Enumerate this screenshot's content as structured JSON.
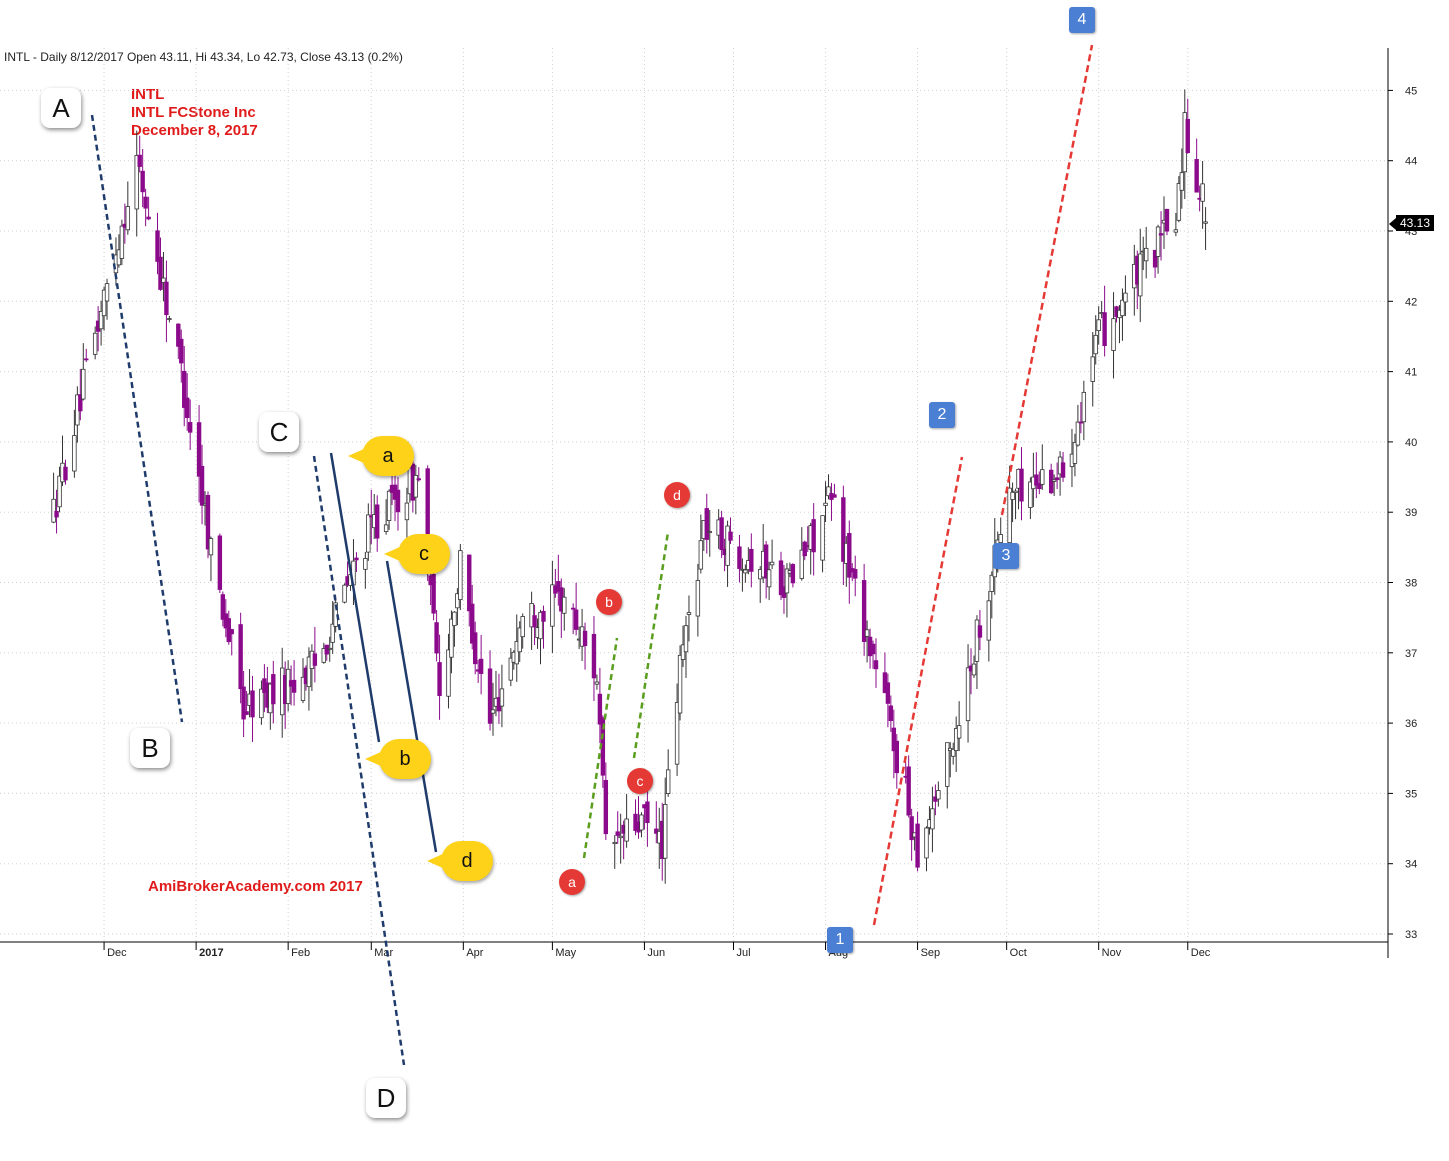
{
  "header": "INTL - Daily 8/12/2017 Open 43.11, Hi 43.34, Lo 42.73, Close 43.13 (0.2%)",
  "annotation": {
    "ticker": "INTL",
    "company": "INTL FCStone Inc",
    "date": "December 8, 2017"
  },
  "watermark": "AmiBrokerAcademy.com 2017",
  "last_price_label": "43.13",
  "wave_labels": {
    "big": [
      "A",
      "B",
      "C",
      "D"
    ],
    "yellow": [
      "a",
      "b",
      "c",
      "d"
    ],
    "red": [
      "a",
      "b",
      "c",
      "d"
    ],
    "blue": [
      "1",
      "2",
      "3",
      "4"
    ]
  },
  "colors": {
    "up_candle": "#ffffff",
    "down_candle": "#8b0a8b",
    "dash_navy": "#1f3b6b",
    "dash_green": "#5a9e1e",
    "dash_red": "#e53935",
    "grid": "#d0d0d0"
  },
  "chart_data": {
    "type": "candlestick",
    "title": "INTL - Daily",
    "ylim": [
      33,
      45
    ],
    "y_ticks": [
      "33",
      "34",
      "35",
      "36",
      "37",
      "38",
      "39",
      "40",
      "41",
      "42",
      "43",
      "44",
      "45"
    ],
    "x_ticks": [
      "Dec",
      "2017",
      "Feb",
      "Mar",
      "Apr",
      "May",
      "Jun",
      "Jul",
      "Aug",
      "Sep",
      "Oct",
      "Nov",
      "Dec"
    ],
    "grid": true,
    "price_path_anchors": [
      {
        "date": "2016-11-14",
        "close": 39.0
      },
      {
        "date": "2016-11-28",
        "close": 41.5
      },
      {
        "date": "2016-12-12",
        "close": 44.0
      },
      {
        "date": "2016-12-27",
        "close": 41.0
      },
      {
        "date": "2017-01-06",
        "close": 38.5
      },
      {
        "date": "2017-01-17",
        "close": 36.2
      },
      {
        "date": "2017-02-10",
        "close": 36.8
      },
      {
        "date": "2017-03-01",
        "close": 38.8
      },
      {
        "date": "2017-03-17",
        "close": 39.5
      },
      {
        "date": "2017-03-24",
        "close": 36.5
      },
      {
        "date": "2017-03-31",
        "close": 38.2
      },
      {
        "date": "2017-04-10",
        "close": 36.0
      },
      {
        "date": "2017-04-21",
        "close": 37.5
      },
      {
        "date": "2017-05-05",
        "close": 37.8
      },
      {
        "date": "2017-05-16",
        "close": 36.7
      },
      {
        "date": "2017-05-19",
        "close": 34.2
      },
      {
        "date": "2017-05-31",
        "close": 34.6
      },
      {
        "date": "2017-06-07",
        "close": 34.3
      },
      {
        "date": "2017-06-13",
        "close": 36.8
      },
      {
        "date": "2017-06-21",
        "close": 38.8
      },
      {
        "date": "2017-07-20",
        "close": 38.0
      },
      {
        "date": "2017-08-03",
        "close": 39.2
      },
      {
        "date": "2017-08-21",
        "close": 36.3
      },
      {
        "date": "2017-09-01",
        "close": 34.2
      },
      {
        "date": "2017-09-12",
        "close": 35.6
      },
      {
        "date": "2017-10-02",
        "close": 39.3
      },
      {
        "date": "2017-10-20",
        "close": 39.6
      },
      {
        "date": "2017-11-01",
        "close": 41.5
      },
      {
        "date": "2017-11-27",
        "close": 43.2
      },
      {
        "date": "2017-11-30",
        "close": 44.5
      },
      {
        "date": "2017-12-08",
        "close": 43.13
      }
    ],
    "last": {
      "open": 43.11,
      "high": 43.34,
      "low": 42.73,
      "close": 43.13
    }
  }
}
